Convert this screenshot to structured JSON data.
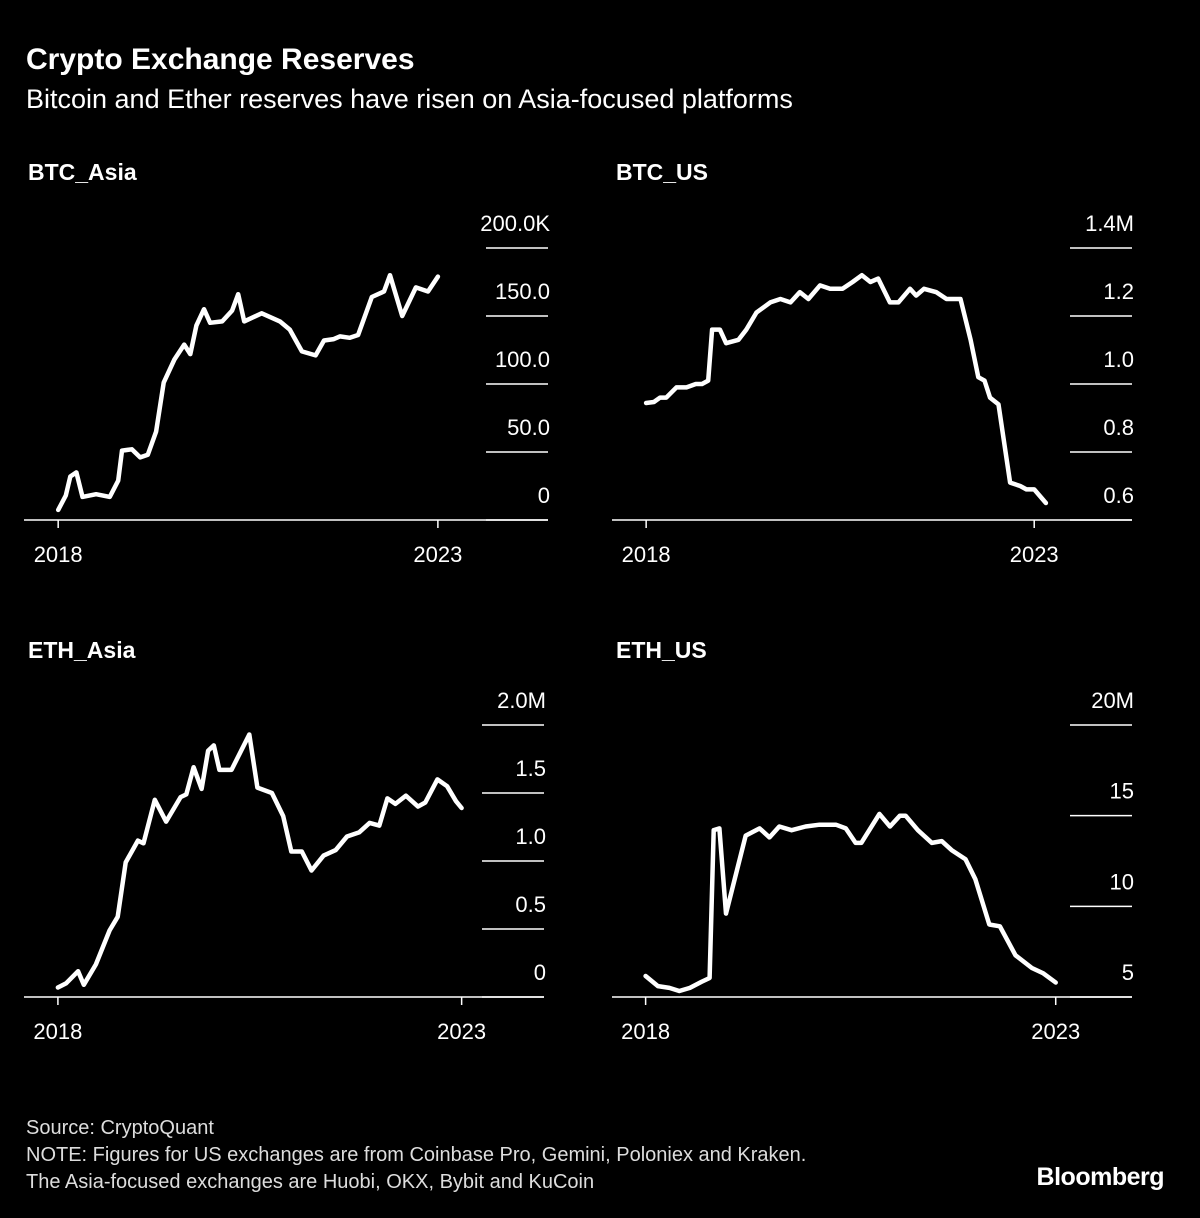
{
  "title": "Crypto Exchange Reserves",
  "subtitle": "Bitcoin and Ether reserves have risen on Asia-focused platforms",
  "chart_data": [
    {
      "type": "line",
      "title": "BTC_Asia",
      "color": "#ffffff",
      "xlim": [
        2017.55,
        2024.45
      ],
      "xticks": [
        2018,
        2023
      ],
      "ylim": [
        0,
        200
      ],
      "yticks": [
        0,
        {
          "value": 50,
          "label": "50.0"
        },
        {
          "value": 100,
          "label": "100.0"
        },
        {
          "value": 150,
          "label": "150.0"
        },
        {
          "value": 200,
          "label": "200.0K"
        }
      ],
      "x": [
        2018.0,
        2018.1,
        2018.16,
        2018.24,
        2018.32,
        2018.5,
        2018.68,
        2018.79,
        2018.84,
        2018.97,
        2019.08,
        2019.18,
        2019.29,
        2019.39,
        2019.53,
        2019.66,
        2019.74,
        2019.82,
        2019.92,
        2020.0,
        2020.16,
        2020.29,
        2020.37,
        2020.45,
        2020.68,
        2020.92,
        2021.05,
        2021.21,
        2021.39,
        2021.5,
        2021.63,
        2021.71,
        2021.84,
        2021.95,
        2022.13,
        2022.29,
        2022.37,
        2022.53,
        2022.71,
        2022.87,
        2023.0
      ],
      "values": [
        7.4,
        18,
        32,
        35,
        17,
        19,
        17,
        29,
        51,
        52,
        46,
        48,
        65,
        101,
        118,
        129,
        122,
        143,
        155,
        145,
        146,
        154,
        166,
        146,
        152,
        146,
        140,
        124,
        121,
        132,
        133,
        135,
        134,
        136,
        164,
        168,
        180,
        150,
        171,
        168,
        179
      ]
    },
    {
      "type": "line",
      "title": "BTC_US",
      "color": "#ffffff",
      "xlim": [
        2017.56,
        2024.26
      ],
      "xticks": [
        2018,
        2023
      ],
      "ylim": [
        0.6,
        1.4
      ],
      "yticks": [
        0.6,
        0.8,
        {
          "value": 1,
          "label": "1.0"
        },
        1.2,
        {
          "value": 1.4,
          "label": "1.4M"
        }
      ],
      "x": [
        2018.0,
        2018.1,
        2018.18,
        2018.26,
        2018.39,
        2018.52,
        2018.64,
        2018.72,
        2018.8,
        2018.85,
        2018.95,
        2019.03,
        2019.19,
        2019.29,
        2019.42,
        2019.6,
        2019.73,
        2019.86,
        2019.98,
        2020.09,
        2020.24,
        2020.37,
        2020.53,
        2020.66,
        2020.78,
        2020.89,
        2020.99,
        2021.14,
        2021.25,
        2021.4,
        2021.48,
        2021.58,
        2021.74,
        2021.87,
        2022.05,
        2022.18,
        2022.28,
        2022.36,
        2022.43,
        2022.54,
        2022.69,
        2022.82,
        2022.9,
        2023.0,
        2023.15
      ],
      "values": [
        0.944,
        0.947,
        0.96,
        0.96,
        0.99,
        0.99,
        1.0,
        1.0,
        1.01,
        1.16,
        1.16,
        1.12,
        1.13,
        1.16,
        1.21,
        1.24,
        1.25,
        1.24,
        1.27,
        1.25,
        1.29,
        1.28,
        1.28,
        1.3,
        1.32,
        1.3,
        1.31,
        1.24,
        1.24,
        1.28,
        1.26,
        1.28,
        1.27,
        1.25,
        1.25,
        1.13,
        1.02,
        1.01,
        0.96,
        0.94,
        0.71,
        0.7,
        0.69,
        0.69,
        0.65
      ]
    },
    {
      "type": "line",
      "title": "ETH_Asia",
      "color": "#ffffff",
      "xlim": [
        2017.58,
        2024.02
      ],
      "xticks": [
        2018,
        2023
      ],
      "ylim": [
        0,
        2
      ],
      "yticks": [
        0,
        0.5,
        {
          "value": 1,
          "label": "1.0"
        },
        1.5,
        {
          "value": 2,
          "label": "2.0M"
        }
      ],
      "x": [
        2018.0,
        2018.1,
        2018.25,
        2018.32,
        2018.47,
        2018.64,
        2018.74,
        2018.84,
        2018.99,
        2019.06,
        2019.2,
        2019.34,
        2019.52,
        2019.59,
        2019.68,
        2019.78,
        2019.86,
        2019.93,
        2020.0,
        2020.15,
        2020.37,
        2020.47,
        2020.65,
        2020.79,
        2020.89,
        2021.02,
        2021.14,
        2021.29,
        2021.44,
        2021.58,
        2021.73,
        2021.86,
        2021.98,
        2022.08,
        2022.18,
        2022.31,
        2022.46,
        2022.55,
        2022.7,
        2022.82,
        2022.93,
        2023.0
      ],
      "values": [
        0.07,
        0.1,
        0.19,
        0.09,
        0.24,
        0.49,
        0.59,
        0.99,
        1.15,
        1.13,
        1.45,
        1.29,
        1.47,
        1.49,
        1.69,
        1.53,
        1.81,
        1.85,
        1.67,
        1.67,
        1.93,
        1.54,
        1.5,
        1.33,
        1.07,
        1.07,
        0.93,
        1.04,
        1.08,
        1.18,
        1.21,
        1.28,
        1.26,
        1.46,
        1.42,
        1.48,
        1.4,
        1.43,
        1.6,
        1.55,
        1.44,
        1.39
      ]
    },
    {
      "type": "line",
      "title": "ETH_US",
      "color": "#ffffff",
      "xlim": [
        2017.59,
        2023.93
      ],
      "xticks": [
        2018,
        2023
      ],
      "ylim": [
        5,
        20
      ],
      "yticks": [
        5,
        10,
        15,
        {
          "value": 20,
          "label": "20M"
        }
      ],
      "x": [
        2018.0,
        2018.15,
        2018.29,
        2018.41,
        2018.54,
        2018.68,
        2018.78,
        2018.83,
        2018.9,
        2018.98,
        2019.22,
        2019.39,
        2019.51,
        2019.63,
        2019.78,
        2019.95,
        2020.12,
        2020.32,
        2020.44,
        2020.56,
        2020.63,
        2020.85,
        2020.98,
        2021.1,
        2021.17,
        2021.32,
        2021.49,
        2021.61,
        2021.73,
        2021.9,
        2022.02,
        2022.19,
        2022.32,
        2022.51,
        2022.71,
        2022.85,
        2023.0
      ],
      "values": [
        6.16,
        5.6,
        5.5,
        5.33,
        5.5,
        5.83,
        6.05,
        14.2,
        14.3,
        9.6,
        13.9,
        14.3,
        13.8,
        14.4,
        14.2,
        14.4,
        14.5,
        14.5,
        14.3,
        13.5,
        13.5,
        15.1,
        14.4,
        15.0,
        15.0,
        14.2,
        13.5,
        13.6,
        13.1,
        12.6,
        11.5,
        9.0,
        8.9,
        7.3,
        6.6,
        6.3,
        5.8
      ]
    }
  ],
  "footer": {
    "source": "Source: CryptoQuant",
    "notes": [
      "NOTE: Figures for US exchanges are from Coinbase Pro, Gemini, Poloniex and Kraken.",
      "The Asia-focused exchanges are Huobi, OKX, Bybit and KuCoin"
    ],
    "brand": "Bloomberg"
  }
}
